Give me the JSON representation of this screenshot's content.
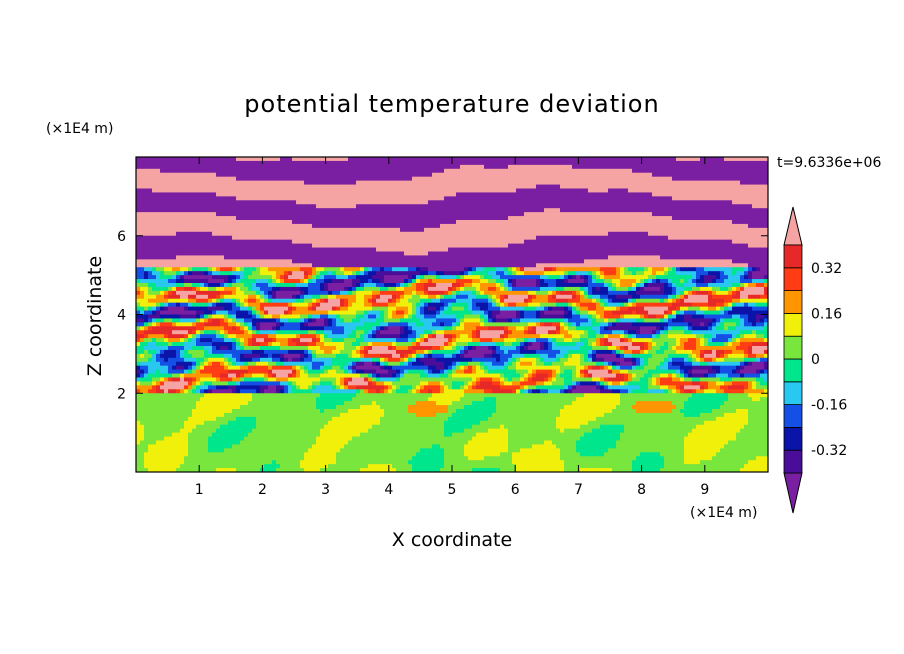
{
  "chart_data": {
    "type": "heatmap",
    "title": "potential temperature deviation",
    "xlabel": "X coordinate",
    "ylabel": "Z coordinate",
    "x_unit": "(×1E4 m)",
    "y_unit": "(×1E4 m)",
    "time_label": "t=9.6336e+06",
    "xlim": [
      0,
      10
    ],
    "ylim": [
      0,
      8
    ],
    "x_ticks": [
      "1",
      "2",
      "3",
      "4",
      "5",
      "6",
      "7",
      "8",
      "9"
    ],
    "y_ticks": [
      "2",
      "4",
      "6"
    ],
    "colorbar": {
      "levels": [
        -0.4,
        -0.32,
        -0.24,
        -0.16,
        -0.08,
        0,
        0.08,
        0.16,
        0.24,
        0.32,
        0.4
      ],
      "labels": [
        "0.32",
        "0.16",
        "0",
        "-0.16",
        "-0.32"
      ],
      "colors_low_to_high": [
        "#7b1fa2",
        "#4a0d9a",
        "#0a14a8",
        "#1450e6",
        "#28c8f0",
        "#00e68c",
        "#78e63c",
        "#f0f00a",
        "#ff9600",
        "#ff3c14",
        "#e62828",
        "#f5a3a3"
      ],
      "extend": "both"
    },
    "observations": {
      "lower_layer_z_range": [
        0,
        2
      ],
      "lower_layer_values": "near 0 (mostly 0 to 0.08), small patches up to 0.16",
      "middle_layer_z_range": [
        2,
        5.2
      ],
      "middle_layer_values": "strongly mixed, roughly -0.4 to 0.4",
      "upper_layer_z_range": [
        5.2,
        8
      ],
      "upper_layer_values": "alternating horizontal bands of < -0.4 and > 0.4"
    }
  },
  "colors": {
    "low_extreme": "#7b1fa2",
    "high_extreme": "#f5a3a3"
  }
}
